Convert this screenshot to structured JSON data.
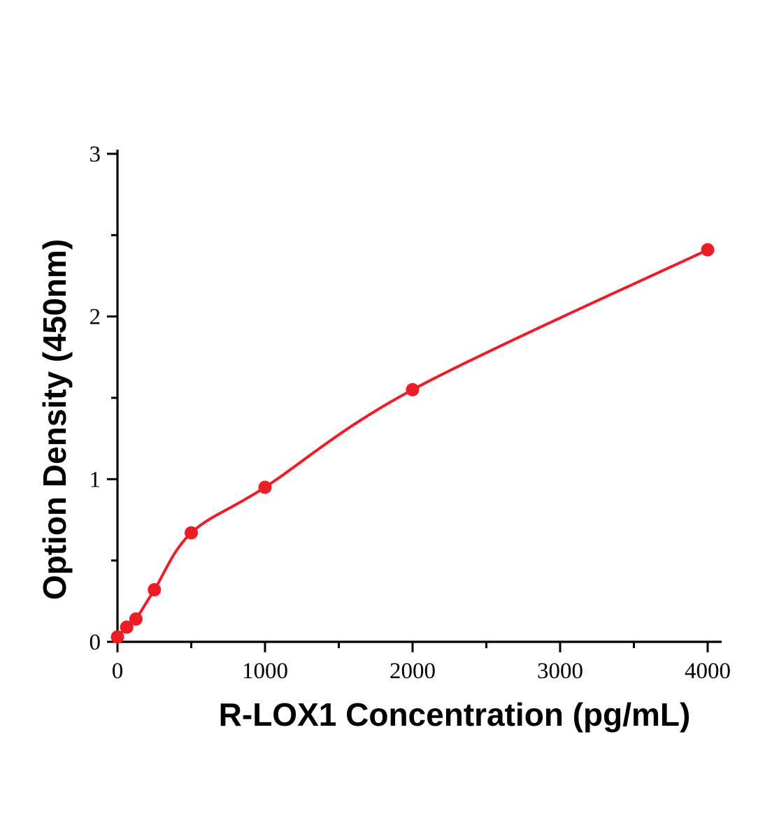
{
  "figure": {
    "background": "#ffffff",
    "description": "ELISA standard curve, red scatter points with smooth fitted curve"
  },
  "chart_data": {
    "type": "scatter",
    "title": "",
    "xlabel": "R-LOX1 Concentration (pg/mL)",
    "ylabel": "Option Density (450nm)",
    "x": [
      0,
      62.5,
      125,
      250,
      500,
      1000,
      2000,
      4000
    ],
    "y": [
      0.03,
      0.09,
      0.14,
      0.32,
      0.67,
      0.95,
      1.55,
      2.41
    ],
    "xlim": [
      0,
      4000
    ],
    "ylim": [
      0,
      3
    ],
    "x_ticks": [
      0,
      1000,
      2000,
      3000,
      4000
    ],
    "y_ticks": [
      0,
      1,
      2,
      3
    ],
    "x_minor_step": 500,
    "y_minor_step": 0.5,
    "grid": false,
    "legend_position": "none",
    "line_color": "#ee1c25",
    "marker_color": "#ee1c25",
    "axis_color": "#000000"
  }
}
